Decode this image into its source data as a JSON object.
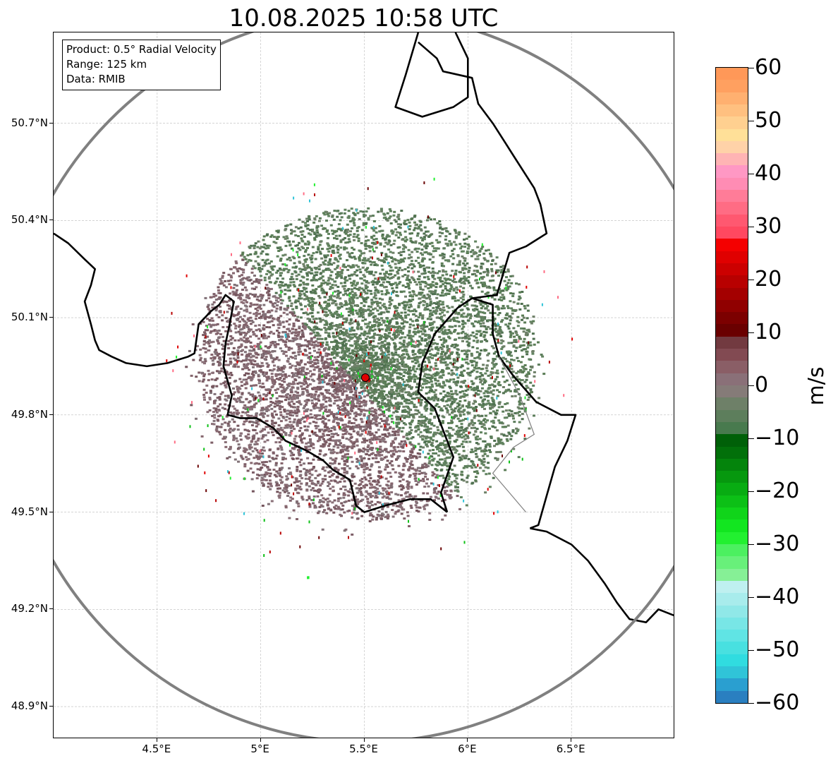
{
  "title": "10.08.2025 10:58 UTC",
  "info": {
    "product": "Product: 0.5° Radial Velocity",
    "range": "Range: 125 km",
    "data": "Data: RMIB"
  },
  "map": {
    "lon_range": [
      4.0,
      7.0
    ],
    "lat_range": [
      48.8,
      50.98
    ],
    "radar_site": {
      "lon": 5.505,
      "lat": 49.915
    },
    "range_ring_km": 125,
    "lon_ticks": [
      {
        "value": 4.5,
        "label": "4.5°E"
      },
      {
        "value": 5.0,
        "label": "5°E"
      },
      {
        "value": 5.5,
        "label": "5.5°E"
      },
      {
        "value": 6.0,
        "label": "6°E"
      },
      {
        "value": 6.5,
        "label": "6.5°E"
      }
    ],
    "lat_ticks": [
      {
        "value": 48.9,
        "label": "48.9°N"
      },
      {
        "value": 49.2,
        "label": "49.2°N"
      },
      {
        "value": 49.5,
        "label": "49.5°N"
      },
      {
        "value": 49.8,
        "label": "49.8°N"
      },
      {
        "value": 50.1,
        "label": "50.1°N"
      },
      {
        "value": 50.4,
        "label": "50.4°N"
      },
      {
        "value": 50.7,
        "label": "50.7°N"
      }
    ],
    "colors": {
      "border": "#000000",
      "inner_border": "#808080",
      "ring": "#808080",
      "grid": "#bbbbbb",
      "radar_marker": "#e00000",
      "echo_inbound": "#5a7c55",
      "echo_outbound": "#7e5f68"
    }
  },
  "colorbar": {
    "unit": "m/s",
    "min": -60,
    "max": 60,
    "ticks": [
      {
        "value": 60,
        "label": "60"
      },
      {
        "value": 50,
        "label": "50"
      },
      {
        "value": 40,
        "label": "40"
      },
      {
        "value": 30,
        "label": "30"
      },
      {
        "value": 20,
        "label": "20"
      },
      {
        "value": 10,
        "label": "10"
      },
      {
        "value": 0,
        "label": "0"
      },
      {
        "value": -10,
        "label": "−10"
      },
      {
        "value": -20,
        "label": "−20"
      },
      {
        "value": -30,
        "label": "−30"
      },
      {
        "value": -40,
        "label": "−40"
      },
      {
        "value": -50,
        "label": "−50"
      },
      {
        "value": -60,
        "label": "−60"
      }
    ],
    "colors": [
      "#2a7fc0",
      "#2a9fd0",
      "#30c4d8",
      "#30dce0",
      "#48e0e0",
      "#60e4e4",
      "#78e6e6",
      "#90e8e8",
      "#a8ecec",
      "#bff0f0",
      "#86f096",
      "#68f07a",
      "#4cf060",
      "#22f030",
      "#12e620",
      "#10d41a",
      "#0cc016",
      "#08ac12",
      "#06980e",
      "#04840c",
      "#02700a",
      "#006008",
      "#487a4e",
      "#5d7e5c",
      "#6e8068",
      "#857b78",
      "#8a7078",
      "#8a5e66",
      "#824a52",
      "#723a40",
      "#6a0000",
      "#7c0000",
      "#900000",
      "#a40000",
      "#b80000",
      "#cc0000",
      "#e00000",
      "#f40000",
      "#ff4860",
      "#ff5870",
      "#ff6c84",
      "#ff7c98",
      "#ff8cb4",
      "#ff98c4",
      "#ffb4b4",
      "#ffd2a8",
      "#ffe098",
      "#ffd090",
      "#ffc080",
      "#ffb070",
      "#ffa060",
      "#ff9858"
    ]
  }
}
